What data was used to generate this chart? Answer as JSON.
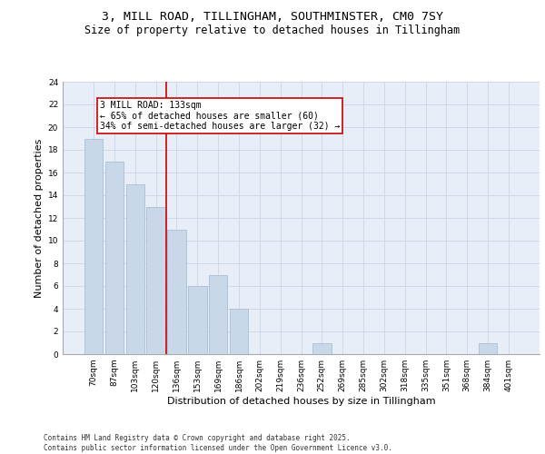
{
  "title_line1": "3, MILL ROAD, TILLINGHAM, SOUTHMINSTER, CM0 7SY",
  "title_line2": "Size of property relative to detached houses in Tillingham",
  "xlabel": "Distribution of detached houses by size in Tillingham",
  "ylabel": "Number of detached properties",
  "categories": [
    "70sqm",
    "87sqm",
    "103sqm",
    "120sqm",
    "136sqm",
    "153sqm",
    "169sqm",
    "186sqm",
    "202sqm",
    "219sqm",
    "236sqm",
    "252sqm",
    "269sqm",
    "285sqm",
    "302sqm",
    "318sqm",
    "335sqm",
    "351sqm",
    "368sqm",
    "384sqm",
    "401sqm"
  ],
  "values": [
    19,
    17,
    15,
    13,
    11,
    6,
    7,
    4,
    0,
    0,
    0,
    1,
    0,
    0,
    0,
    0,
    0,
    0,
    0,
    1,
    0
  ],
  "bar_color": "#c8d8e8",
  "bar_edgecolor": "#a0b8d0",
  "grid_color": "#d0d8e8",
  "background_color": "#e8eef8",
  "vline_x_index": 4,
  "vline_color": "#cc0000",
  "annotation_box_text": "3 MILL ROAD: 133sqm\n← 65% of detached houses are smaller (60)\n34% of semi-detached houses are larger (32) →",
  "ylim": [
    0,
    24
  ],
  "yticks": [
    0,
    2,
    4,
    6,
    8,
    10,
    12,
    14,
    16,
    18,
    20,
    22,
    24
  ],
  "footer_text": "Contains HM Land Registry data © Crown copyright and database right 2025.\nContains public sector information licensed under the Open Government Licence v3.0.",
  "title_fontsize": 9.5,
  "subtitle_fontsize": 8.5,
  "axis_label_fontsize": 8,
  "tick_fontsize": 6.5,
  "annotation_fontsize": 7,
  "footer_fontsize": 5.5
}
